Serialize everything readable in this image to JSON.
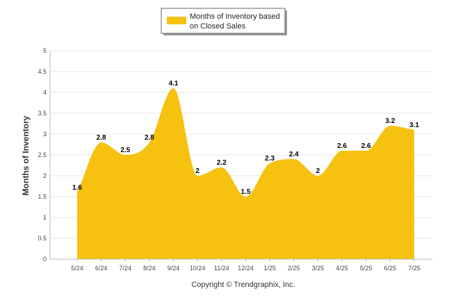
{
  "chart_data": {
    "type": "area",
    "categories": [
      "5/24",
      "6/24",
      "7/24",
      "8/24",
      "9/24",
      "10/24",
      "11/24",
      "12/24",
      "1/25",
      "2/25",
      "3/25",
      "4/25",
      "5/25",
      "6/25",
      "7/25"
    ],
    "series": [
      {
        "name": "Months of Inventory based on Closed Sales",
        "values": [
          1.6,
          2.8,
          2.5,
          2.8,
          4.1,
          2,
          2.2,
          1.5,
          2.3,
          2.4,
          2,
          2.6,
          2.6,
          3.2,
          3.1
        ],
        "color": "#F6C10F"
      }
    ],
    "legend_lines": [
      "Months of Inventory based",
      "on Closed Sales"
    ],
    "ylabel": "Months of Inventory",
    "ylim": [
      0,
      5
    ],
    "yticks": [
      "0",
      "0.5",
      "1",
      "1.5",
      "2",
      "2.5",
      "3",
      "3.5",
      "4",
      "4.5",
      "5"
    ],
    "grid": true,
    "legend_position": "top-center",
    "credit": "Copyright © Trendgraphix, Inc."
  }
}
